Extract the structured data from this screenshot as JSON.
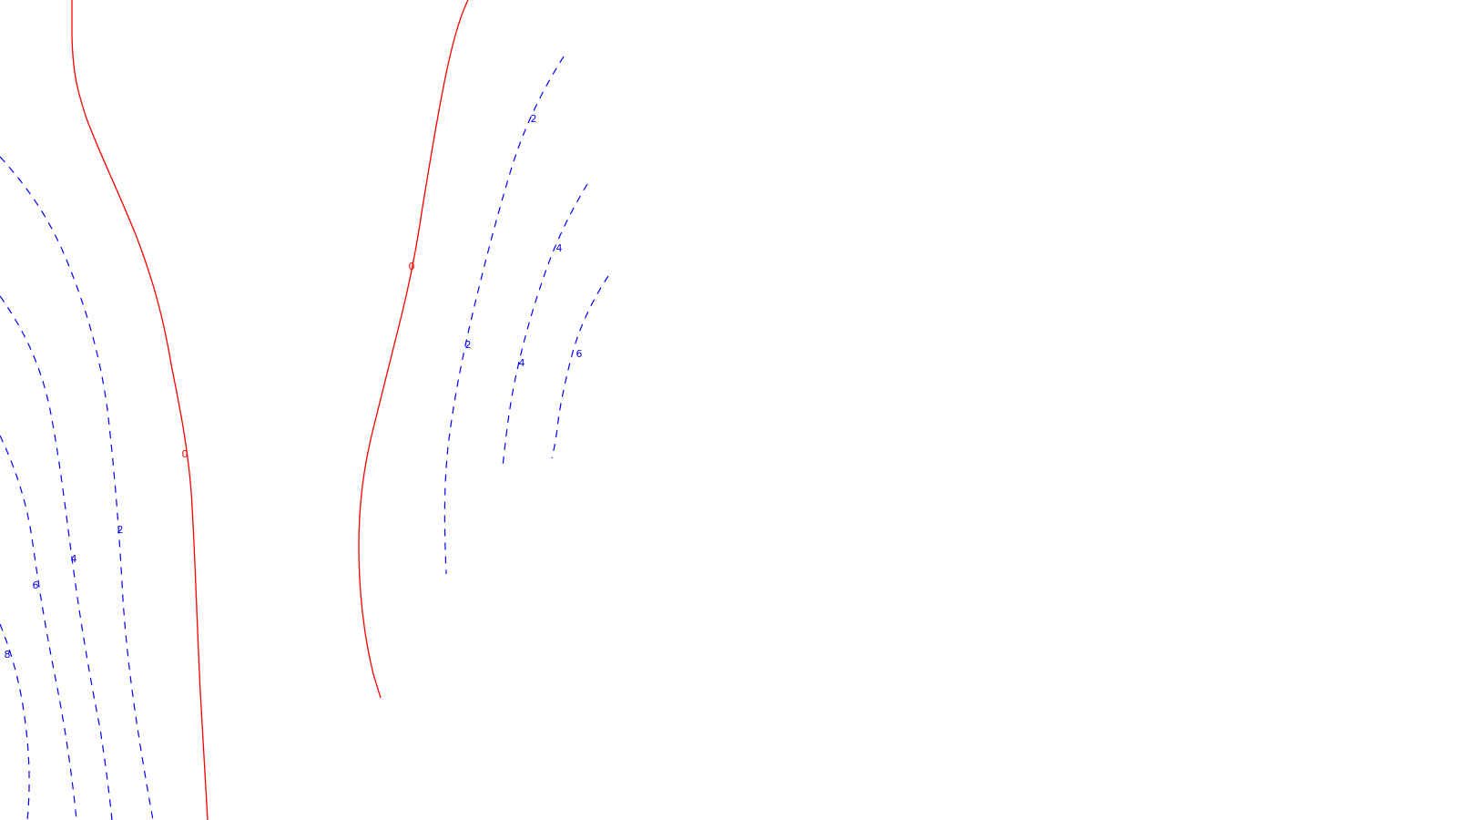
{
  "map": {
    "colors": {
      "zero_contour": "#ff0000",
      "dashed_contour": "#0000ff",
      "background": "#ffffff"
    },
    "contours": [
      {
        "id": "zero-left",
        "value": "0",
        "style": "solid",
        "color": "#ff0000"
      },
      {
        "id": "zero-center",
        "value": "0",
        "style": "solid",
        "color": "#ff0000"
      },
      {
        "id": "left-2",
        "value": "2",
        "style": "dashed",
        "color": "#0000ff"
      },
      {
        "id": "left-4",
        "value": "4",
        "style": "dashed",
        "color": "#0000ff"
      },
      {
        "id": "left-6",
        "value": "6",
        "style": "dashed",
        "color": "#0000ff"
      },
      {
        "id": "left-8",
        "value": "8",
        "style": "dashed",
        "color": "#0000ff"
      },
      {
        "id": "right-2",
        "value": "2",
        "style": "dashed",
        "color": "#0000ff"
      },
      {
        "id": "right-4",
        "value": "4",
        "style": "dashed",
        "color": "#0000ff"
      },
      {
        "id": "right-6",
        "value": "6",
        "style": "dashed",
        "color": "#0000ff"
      }
    ],
    "labels": {
      "zero_left": "0",
      "zero_center": "0",
      "left_2": "2",
      "left_4": "4",
      "left_6": "6",
      "left_8": "8",
      "right_2_upper": "2",
      "right_2_lower": "2",
      "right_4_upper": "4",
      "right_4_lower": "4",
      "right_6": "6"
    }
  }
}
